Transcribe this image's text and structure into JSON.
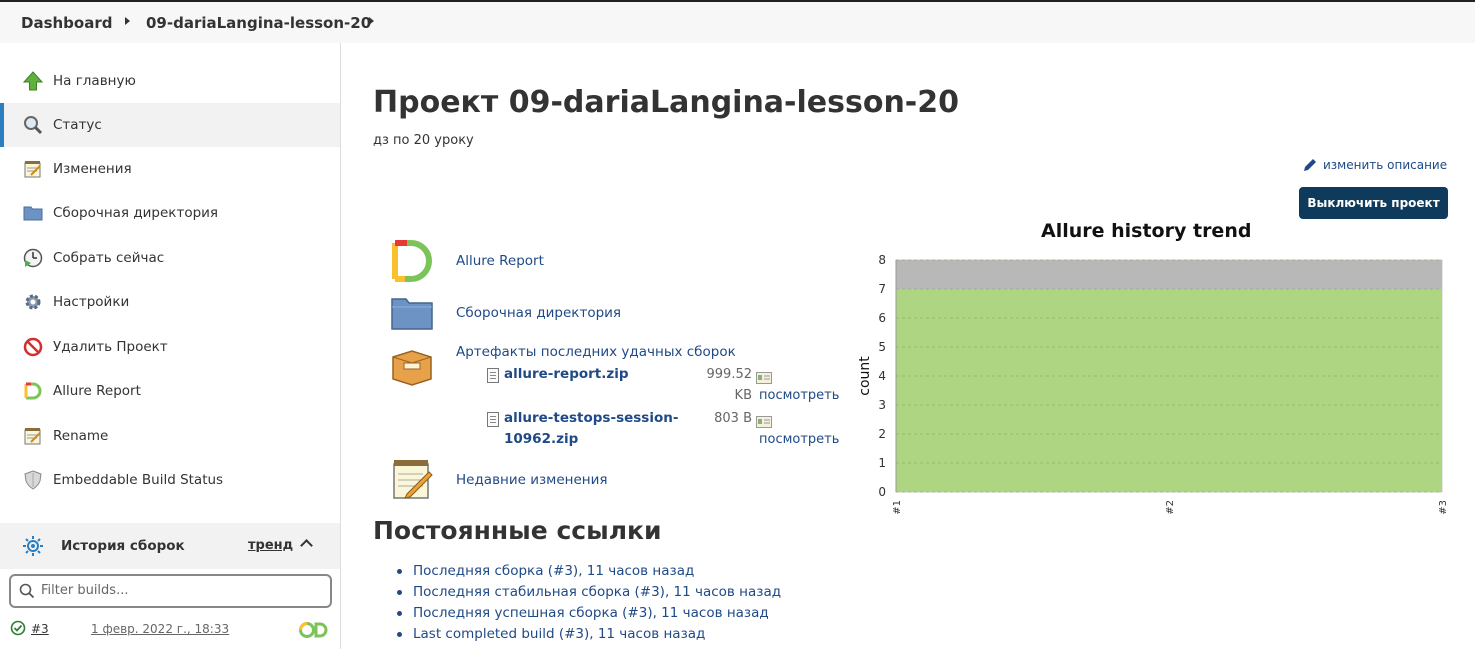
{
  "breadcrumb": {
    "home": "Dashboard",
    "project": "09-dariaLangina-lesson-20"
  },
  "sidebar": {
    "items": [
      {
        "label": "На главную",
        "icon": "arrow-up-icon"
      },
      {
        "label": "Статус",
        "icon": "magnifier-icon",
        "active": true
      },
      {
        "label": "Изменения",
        "icon": "notepad-icon"
      },
      {
        "label": "Сборочная директория",
        "icon": "folder-icon"
      },
      {
        "label": "Собрать сейчас",
        "icon": "clock-play-icon"
      },
      {
        "label": "Настройки",
        "icon": "gear-icon"
      },
      {
        "label": "Удалить Проект",
        "icon": "no-entry-icon"
      },
      {
        "label": "Allure Report",
        "icon": "allure-icon"
      },
      {
        "label": "Rename",
        "icon": "notepad-icon"
      },
      {
        "label": "Embeddable Build Status",
        "icon": "shield-icon"
      }
    ],
    "history": {
      "title": "История сборок",
      "trend": "тренд",
      "filter_placeholder": "Filter builds..."
    },
    "builds": [
      {
        "number": "#3",
        "date": "1 февр. 2022 г., 18:33",
        "status": "success"
      }
    ]
  },
  "main": {
    "title": "Проект 09-dariaLangina-lesson-20",
    "description": "дз по 20 уроку",
    "edit_description": "изменить описание",
    "disable_button": "Выключить проект",
    "links": {
      "allure": "Allure Report",
      "workspace": "Сборочная директория",
      "artifacts": "Артефакты последних удачных сборок",
      "changes": "Недавние изменения"
    },
    "artifacts": [
      {
        "name": "allure-report.zip",
        "size_line1": "999.52",
        "size_line2": "KB",
        "view": "посмотреть"
      },
      {
        "name_line1": "allure-testops-session-",
        "name_line2": "10962.zip",
        "size_line1": "803 B",
        "view": "посмотреть"
      }
    ],
    "permalinks_title": "Постоянные ссылки",
    "permalinks": [
      "Последняя сборка (#3), 11 часов назад",
      "Последняя стабильная сборка (#3), 11 часов назад",
      "Последняя успешная сборка (#3), 11 часов назад",
      "Last completed build (#3), 11 часов назад"
    ]
  },
  "chart_data": {
    "type": "area",
    "title": "Allure history trend",
    "ylabel": "count",
    "xlabel": "",
    "categories": [
      "#1",
      "#2",
      "#3"
    ],
    "ylim": [
      0,
      8
    ],
    "yticks": [
      "0",
      "1",
      "2",
      "3",
      "4",
      "5",
      "6",
      "7",
      "8"
    ],
    "stacked": true,
    "series": [
      {
        "values": [
          7,
          7,
          7
        ],
        "color": "#aed581"
      },
      {
        "values": [
          1,
          1,
          1
        ],
        "color": "#b8b8b8"
      }
    ],
    "grid": true
  }
}
